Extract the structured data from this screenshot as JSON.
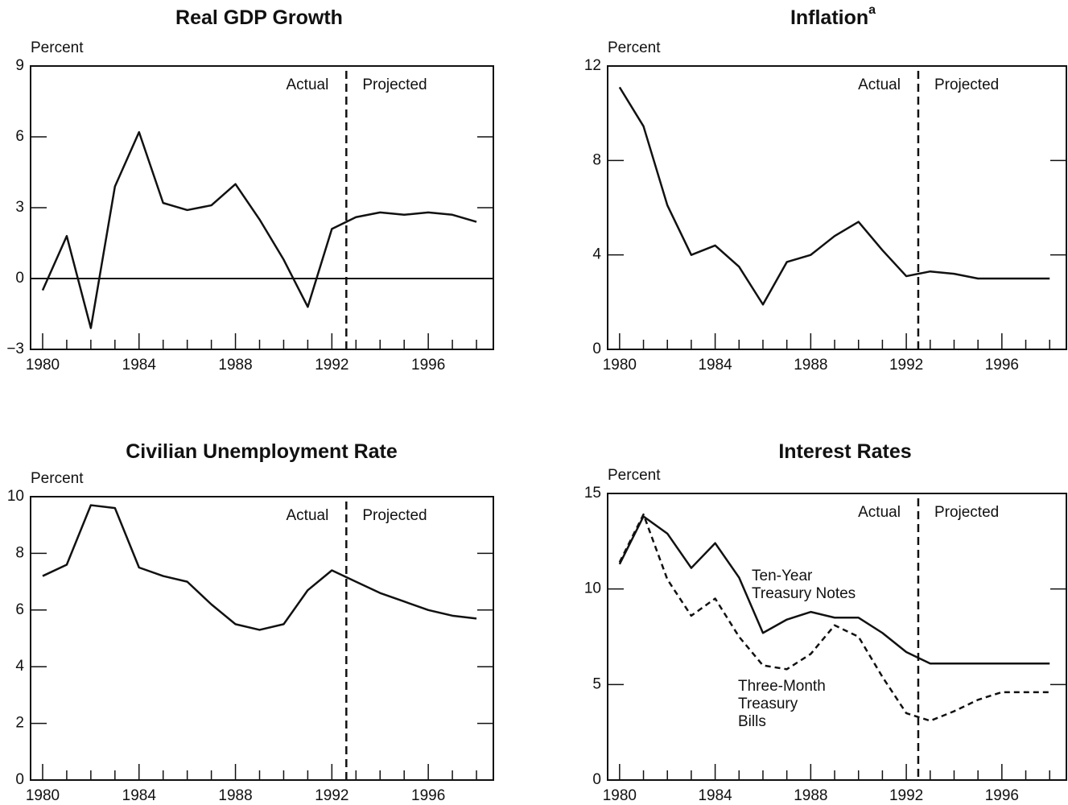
{
  "chart_data": [
    {
      "type": "line",
      "title": "Real GDP Growth",
      "y_label": "Percent",
      "annotations": [
        "Actual",
        "Projected"
      ],
      "vline": 1992.6,
      "hline": 0,
      "x": [
        1980,
        1981,
        1982,
        1983,
        1984,
        1985,
        1986,
        1987,
        1988,
        1989,
        1990,
        1991,
        1992,
        1993,
        1994,
        1995,
        1996,
        1997,
        1998
      ],
      "series": [
        {
          "name": "Real GDP Growth",
          "color": "#111111",
          "style": "solid",
          "values": [
            -0.5,
            1.8,
            -2.1,
            3.9,
            6.2,
            3.2,
            2.9,
            3.1,
            4.0,
            2.5,
            0.8,
            -1.2,
            2.1,
            2.6,
            2.8,
            2.7,
            2.8,
            2.7,
            2.4
          ]
        }
      ],
      "xlim": [
        1979.5,
        1998.7
      ],
      "xticks": [
        1980,
        1984,
        1988,
        1992,
        1996
      ],
      "xminor_ticks": [
        1981,
        1982,
        1983,
        1985,
        1986,
        1987,
        1989,
        1990,
        1991,
        1993,
        1994,
        1995,
        1997,
        1998
      ],
      "ylim": [
        -3,
        9
      ],
      "yticks": [
        {
          "value": -3,
          "label": "−3"
        },
        0,
        3,
        6,
        9
      ]
    },
    {
      "type": "line",
      "title": "Inflation",
      "title_note": "a",
      "y_label": "Percent",
      "annotations": [
        "Actual",
        "Projected"
      ],
      "vline": 1992.5,
      "x": [
        1980,
        1981,
        1982,
        1983,
        1984,
        1985,
        1986,
        1987,
        1988,
        1989,
        1990,
        1991,
        1992,
        1993,
        1994,
        1995,
        1996,
        1997,
        1998
      ],
      "series": [
        {
          "name": "Inflation",
          "color": "#111111",
          "style": "solid",
          "values": [
            11.1,
            9.45,
            6.1,
            4.0,
            4.4,
            3.5,
            1.9,
            3.7,
            4.0,
            4.8,
            5.4,
            4.2,
            3.1,
            3.3,
            3.2,
            3.0,
            3.0,
            3.0,
            3.0
          ]
        }
      ],
      "xlim": [
        1979.5,
        1998.7
      ],
      "xticks": [
        1980,
        1984,
        1988,
        1992,
        1996
      ],
      "xminor_ticks": [
        1981,
        1982,
        1983,
        1985,
        1986,
        1987,
        1989,
        1990,
        1991,
        1993,
        1994,
        1995,
        1997,
        1998
      ],
      "ylim": [
        0,
        12
      ],
      "yticks": [
        0,
        4,
        8,
        12
      ]
    },
    {
      "type": "line",
      "title": "Civilian Unemployment Rate",
      "y_label": "Percent",
      "annotations": [
        "Actual",
        "Projected"
      ],
      "vline": 1992.6,
      "x": [
        1980,
        1981,
        1982,
        1983,
        1984,
        1985,
        1986,
        1987,
        1988,
        1989,
        1990,
        1991,
        1992,
        1993,
        1994,
        1995,
        1996,
        1997,
        1998
      ],
      "series": [
        {
          "name": "Civilian Unemployment Rate",
          "color": "#111111",
          "style": "solid",
          "values": [
            7.2,
            7.6,
            9.7,
            9.6,
            7.5,
            7.2,
            7.0,
            6.2,
            5.5,
            5.3,
            5.5,
            6.7,
            7.4,
            7.0,
            6.6,
            6.3,
            6.0,
            5.8,
            5.7
          ]
        }
      ],
      "xlim": [
        1979.5,
        1998.7
      ],
      "xticks": [
        1980,
        1984,
        1988,
        1992,
        1996
      ],
      "xminor_ticks": [
        1981,
        1982,
        1983,
        1985,
        1986,
        1987,
        1989,
        1990,
        1991,
        1993,
        1994,
        1995,
        1997,
        1998
      ],
      "ylim": [
        0,
        10
      ],
      "yticks": [
        0,
        2,
        4,
        6,
        8,
        10
      ]
    },
    {
      "type": "line",
      "title": "Interest Rates",
      "y_label": "Percent",
      "annotations": [
        "Actual",
        "Projected"
      ],
      "vline": 1992.5,
      "x": [
        1980,
        1981,
        1982,
        1983,
        1984,
        1985,
        1986,
        1987,
        1988,
        1989,
        1990,
        1991,
        1992,
        1993,
        1994,
        1995,
        1996,
        1997,
        1998
      ],
      "series": [
        {
          "name": [
            "Ten-Year",
            "Treasury Notes"
          ],
          "color": "#111111",
          "style": "solid",
          "values": [
            11.3,
            13.8,
            12.9,
            11.1,
            12.4,
            10.6,
            7.7,
            8.4,
            8.8,
            8.5,
            8.5,
            7.7,
            6.7,
            6.1,
            6.1,
            6.1,
            6.1,
            6.1,
            6.1
          ]
        },
        {
          "name": [
            "Three-Month",
            "Treasury",
            "Bills"
          ],
          "color": "#111111",
          "style": "dashed",
          "values": [
            11.4,
            13.9,
            10.5,
            8.6,
            9.5,
            7.5,
            6.0,
            5.8,
            6.6,
            8.1,
            7.5,
            5.4,
            3.5,
            3.1,
            3.6,
            4.2,
            4.6,
            4.6,
            4.6
          ]
        }
      ],
      "xlim": [
        1979.5,
        1998.7
      ],
      "xticks": [
        1980,
        1984,
        1988,
        1992,
        1996
      ],
      "xminor_ticks": [
        1981,
        1982,
        1983,
        1985,
        1986,
        1987,
        1989,
        1990,
        1991,
        1993,
        1994,
        1995,
        1997,
        1998
      ],
      "ylim": [
        0,
        15
      ],
      "yticks": [
        0,
        5,
        10,
        15
      ]
    }
  ]
}
